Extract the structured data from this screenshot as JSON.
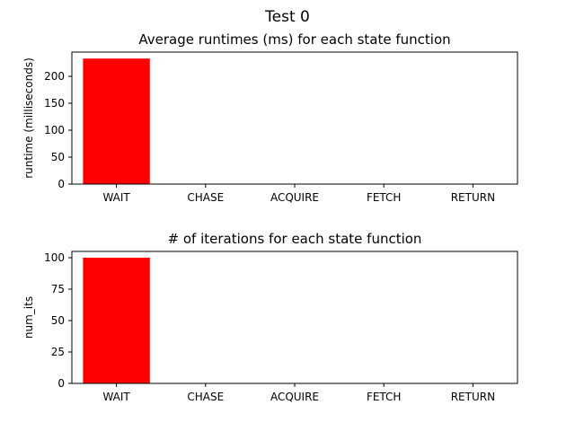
{
  "figure": {
    "suptitle": "Test 0"
  },
  "colors": {
    "bar": "#ff0000",
    "axis": "#000000",
    "background": "#ffffff"
  },
  "chart_data": [
    {
      "type": "bar",
      "title": "Average runtimes (ms) for each state function",
      "xlabel": "",
      "ylabel": "runtime (milliseconds)",
      "categories": [
        "WAIT",
        "CHASE",
        "ACQUIRE",
        "FETCH",
        "RETURN"
      ],
      "values": [
        233,
        0,
        0,
        0,
        0
      ],
      "ylim": [
        0,
        245
      ],
      "yticks": [
        0,
        50,
        100,
        150,
        200
      ],
      "grid": false
    },
    {
      "type": "bar",
      "title": "# of iterations for each state function",
      "xlabel": "",
      "ylabel": "num_its",
      "categories": [
        "WAIT",
        "CHASE",
        "ACQUIRE",
        "FETCH",
        "RETURN"
      ],
      "values": [
        100,
        0,
        0,
        0,
        0
      ],
      "ylim": [
        0,
        105
      ],
      "yticks": [
        0,
        25,
        50,
        75,
        100
      ],
      "grid": false
    }
  ]
}
